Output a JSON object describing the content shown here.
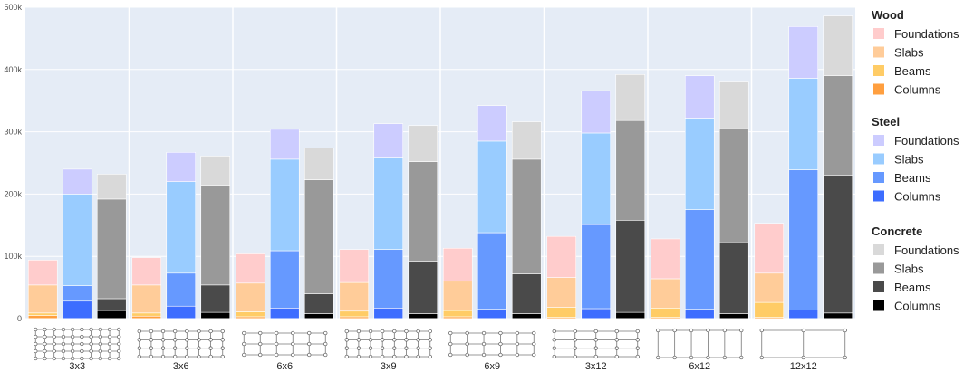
{
  "chart_data": {
    "type": "bar",
    "stacked": true,
    "grouped_by": "material",
    "categories": [
      "3x3",
      "3x6",
      "6x6",
      "3x9",
      "6x9",
      "3x12",
      "6x12",
      "12x12"
    ],
    "ylim": [
      0,
      500000
    ],
    "yticks": [
      0,
      100000,
      200000,
      300000,
      400000,
      500000
    ],
    "ytick_labels": [
      "0",
      "100k",
      "200k",
      "300k",
      "400k",
      "500k"
    ],
    "grid": true,
    "legend_position": "right",
    "materials": [
      {
        "name": "Wood",
        "components": [
          {
            "name": "Columns",
            "color": "#ff9f3f",
            "values": [
              5000,
              4000,
              3000,
              3000,
              3000,
              2000,
              2000,
              2000
            ]
          },
          {
            "name": "Beams",
            "color": "#ffcc66",
            "values": [
              4000,
              5000,
              8000,
              9000,
              10000,
              16000,
              15000,
              24000
            ]
          },
          {
            "name": "Slabs",
            "color": "#ffcc99",
            "values": [
              45000,
              45000,
              46000,
              46000,
              47000,
              48000,
              47000,
              47000
            ]
          },
          {
            "name": "Foundations",
            "color": "#ffcccc",
            "values": [
              40000,
              44000,
              47000,
              53000,
              53000,
              66000,
              64000,
              80000
            ]
          }
        ]
      },
      {
        "name": "Steel",
        "components": [
          {
            "name": "Columns",
            "color": "#3d6dff",
            "values": [
              28000,
              20000,
              17000,
              17000,
              15000,
              16000,
              15000,
              14000
            ]
          },
          {
            "name": "Beams",
            "color": "#6699ff",
            "values": [
              25000,
              53000,
              92000,
              94000,
              123000,
              135000,
              160000,
              225000
            ]
          },
          {
            "name": "Slabs",
            "color": "#99ccff",
            "values": [
              147000,
              147000,
              147000,
              147000,
              147000,
              147000,
              147000,
              147000
            ]
          },
          {
            "name": "Foundations",
            "color": "#ccccff",
            "values": [
              40000,
              47000,
              48000,
              55000,
              57000,
              68000,
              68000,
              83000
            ]
          }
        ]
      },
      {
        "name": "Concrete",
        "components": [
          {
            "name": "Columns",
            "color": "#000000",
            "values": [
              13000,
              10000,
              8000,
              8000,
              8000,
              10000,
              8000,
              9000
            ]
          },
          {
            "name": "Beams",
            "color": "#4a4a4a",
            "values": [
              19000,
              44000,
              32000,
              84000,
              64000,
              148000,
              114000,
              221000
            ]
          },
          {
            "name": "Slabs",
            "color": "#999999",
            "values": [
              160000,
              160000,
              183000,
              160000,
              184000,
              160000,
              183000,
              160000
            ]
          },
          {
            "name": "Foundations",
            "color": "#d9d9d9",
            "values": [
              40000,
              47000,
              51000,
              58000,
              60000,
              74000,
              75000,
              96000
            ]
          }
        ]
      }
    ]
  }
}
